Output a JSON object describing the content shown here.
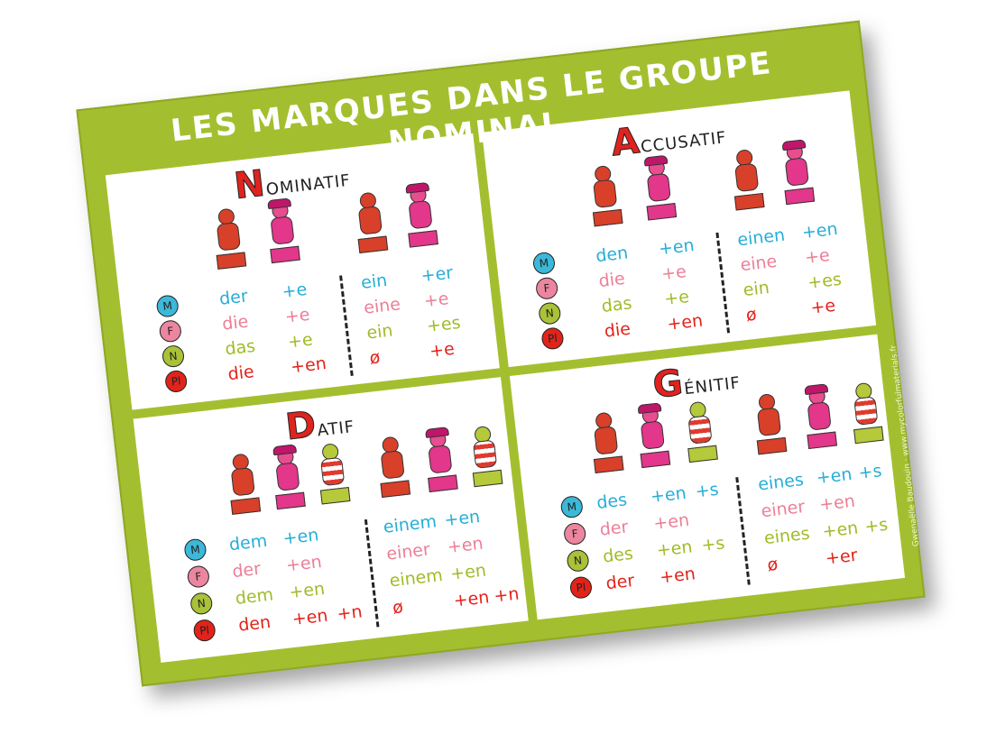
{
  "title": "LES MARQUES DANS LE GROUPE NOMINAL",
  "credit": "Gwenaëlle Baudouin · www.mycolorfulmaterials.fr",
  "colors": {
    "poster": "#a3bf2f",
    "masculine": "#27aed6",
    "feminine": "#ec7f97",
    "neuter": "#9fbc28",
    "plural": "#e2231a"
  },
  "badges": [
    "M",
    "F",
    "N",
    "Pl"
  ],
  "nominatif": {
    "initial": "N",
    "rest": "OMINATIF",
    "left": [
      [
        "der",
        "+e"
      ],
      [
        "die",
        "+e"
      ],
      [
        "das",
        "+e"
      ],
      [
        "die",
        "+en"
      ]
    ],
    "right": [
      [
        "ein",
        "+er"
      ],
      [
        "eine",
        "+e"
      ],
      [
        "ein",
        "+es"
      ],
      [
        "ø",
        "+e"
      ]
    ]
  },
  "accusatif": {
    "initial": "A",
    "rest": "CCUSATIF",
    "left": [
      [
        "den",
        "+en"
      ],
      [
        "die",
        "+e"
      ],
      [
        "das",
        "+e"
      ],
      [
        "die",
        "+en"
      ]
    ],
    "right": [
      [
        "einen",
        "+en"
      ],
      [
        "eine",
        "+e"
      ],
      [
        "ein",
        "+es"
      ],
      [
        "ø",
        "+e"
      ]
    ]
  },
  "datif": {
    "initial": "D",
    "rest": "ATIF",
    "left": [
      [
        "dem",
        "+en",
        ""
      ],
      [
        "der",
        "+en",
        ""
      ],
      [
        "dem",
        "+en",
        ""
      ],
      [
        "den",
        "+en",
        "+n"
      ]
    ],
    "right": [
      [
        "einem",
        "+en",
        ""
      ],
      [
        "einer",
        "+en",
        ""
      ],
      [
        "einem",
        "+en",
        ""
      ],
      [
        "ø",
        "+en",
        "+n"
      ]
    ]
  },
  "genitif": {
    "initial": "G",
    "rest": "ÉNITIF",
    "left": [
      [
        "des",
        "+en",
        "+s"
      ],
      [
        "der",
        "+en",
        ""
      ],
      [
        "des",
        "+en",
        "+s"
      ],
      [
        "der",
        "+en",
        ""
      ]
    ],
    "right": [
      [
        "eines",
        "+en",
        "+s"
      ],
      [
        "einer",
        "+en",
        ""
      ],
      [
        "eines",
        "+en",
        "+s"
      ],
      [
        "ø",
        "+er",
        ""
      ]
    ]
  }
}
